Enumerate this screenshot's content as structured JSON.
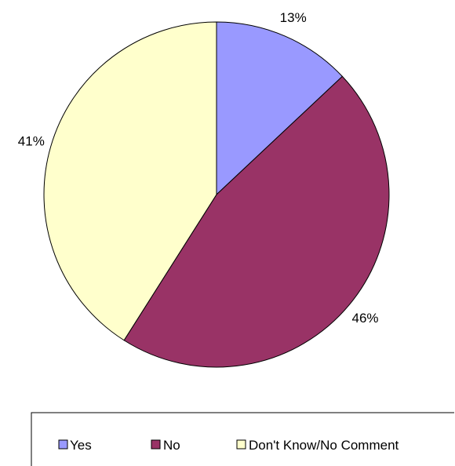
{
  "chart_data": {
    "type": "pie",
    "title": "",
    "categories": [
      "Yes",
      "No",
      "Don't Know/No Comment"
    ],
    "values": [
      13,
      46,
      41
    ],
    "labels": [
      "13%",
      "46%",
      "41%"
    ],
    "colors": [
      "#9999ff",
      "#993366",
      "#ffffcc"
    ],
    "start_angle": "12 o'clock",
    "direction": "clockwise",
    "legend_position": "bottom"
  }
}
